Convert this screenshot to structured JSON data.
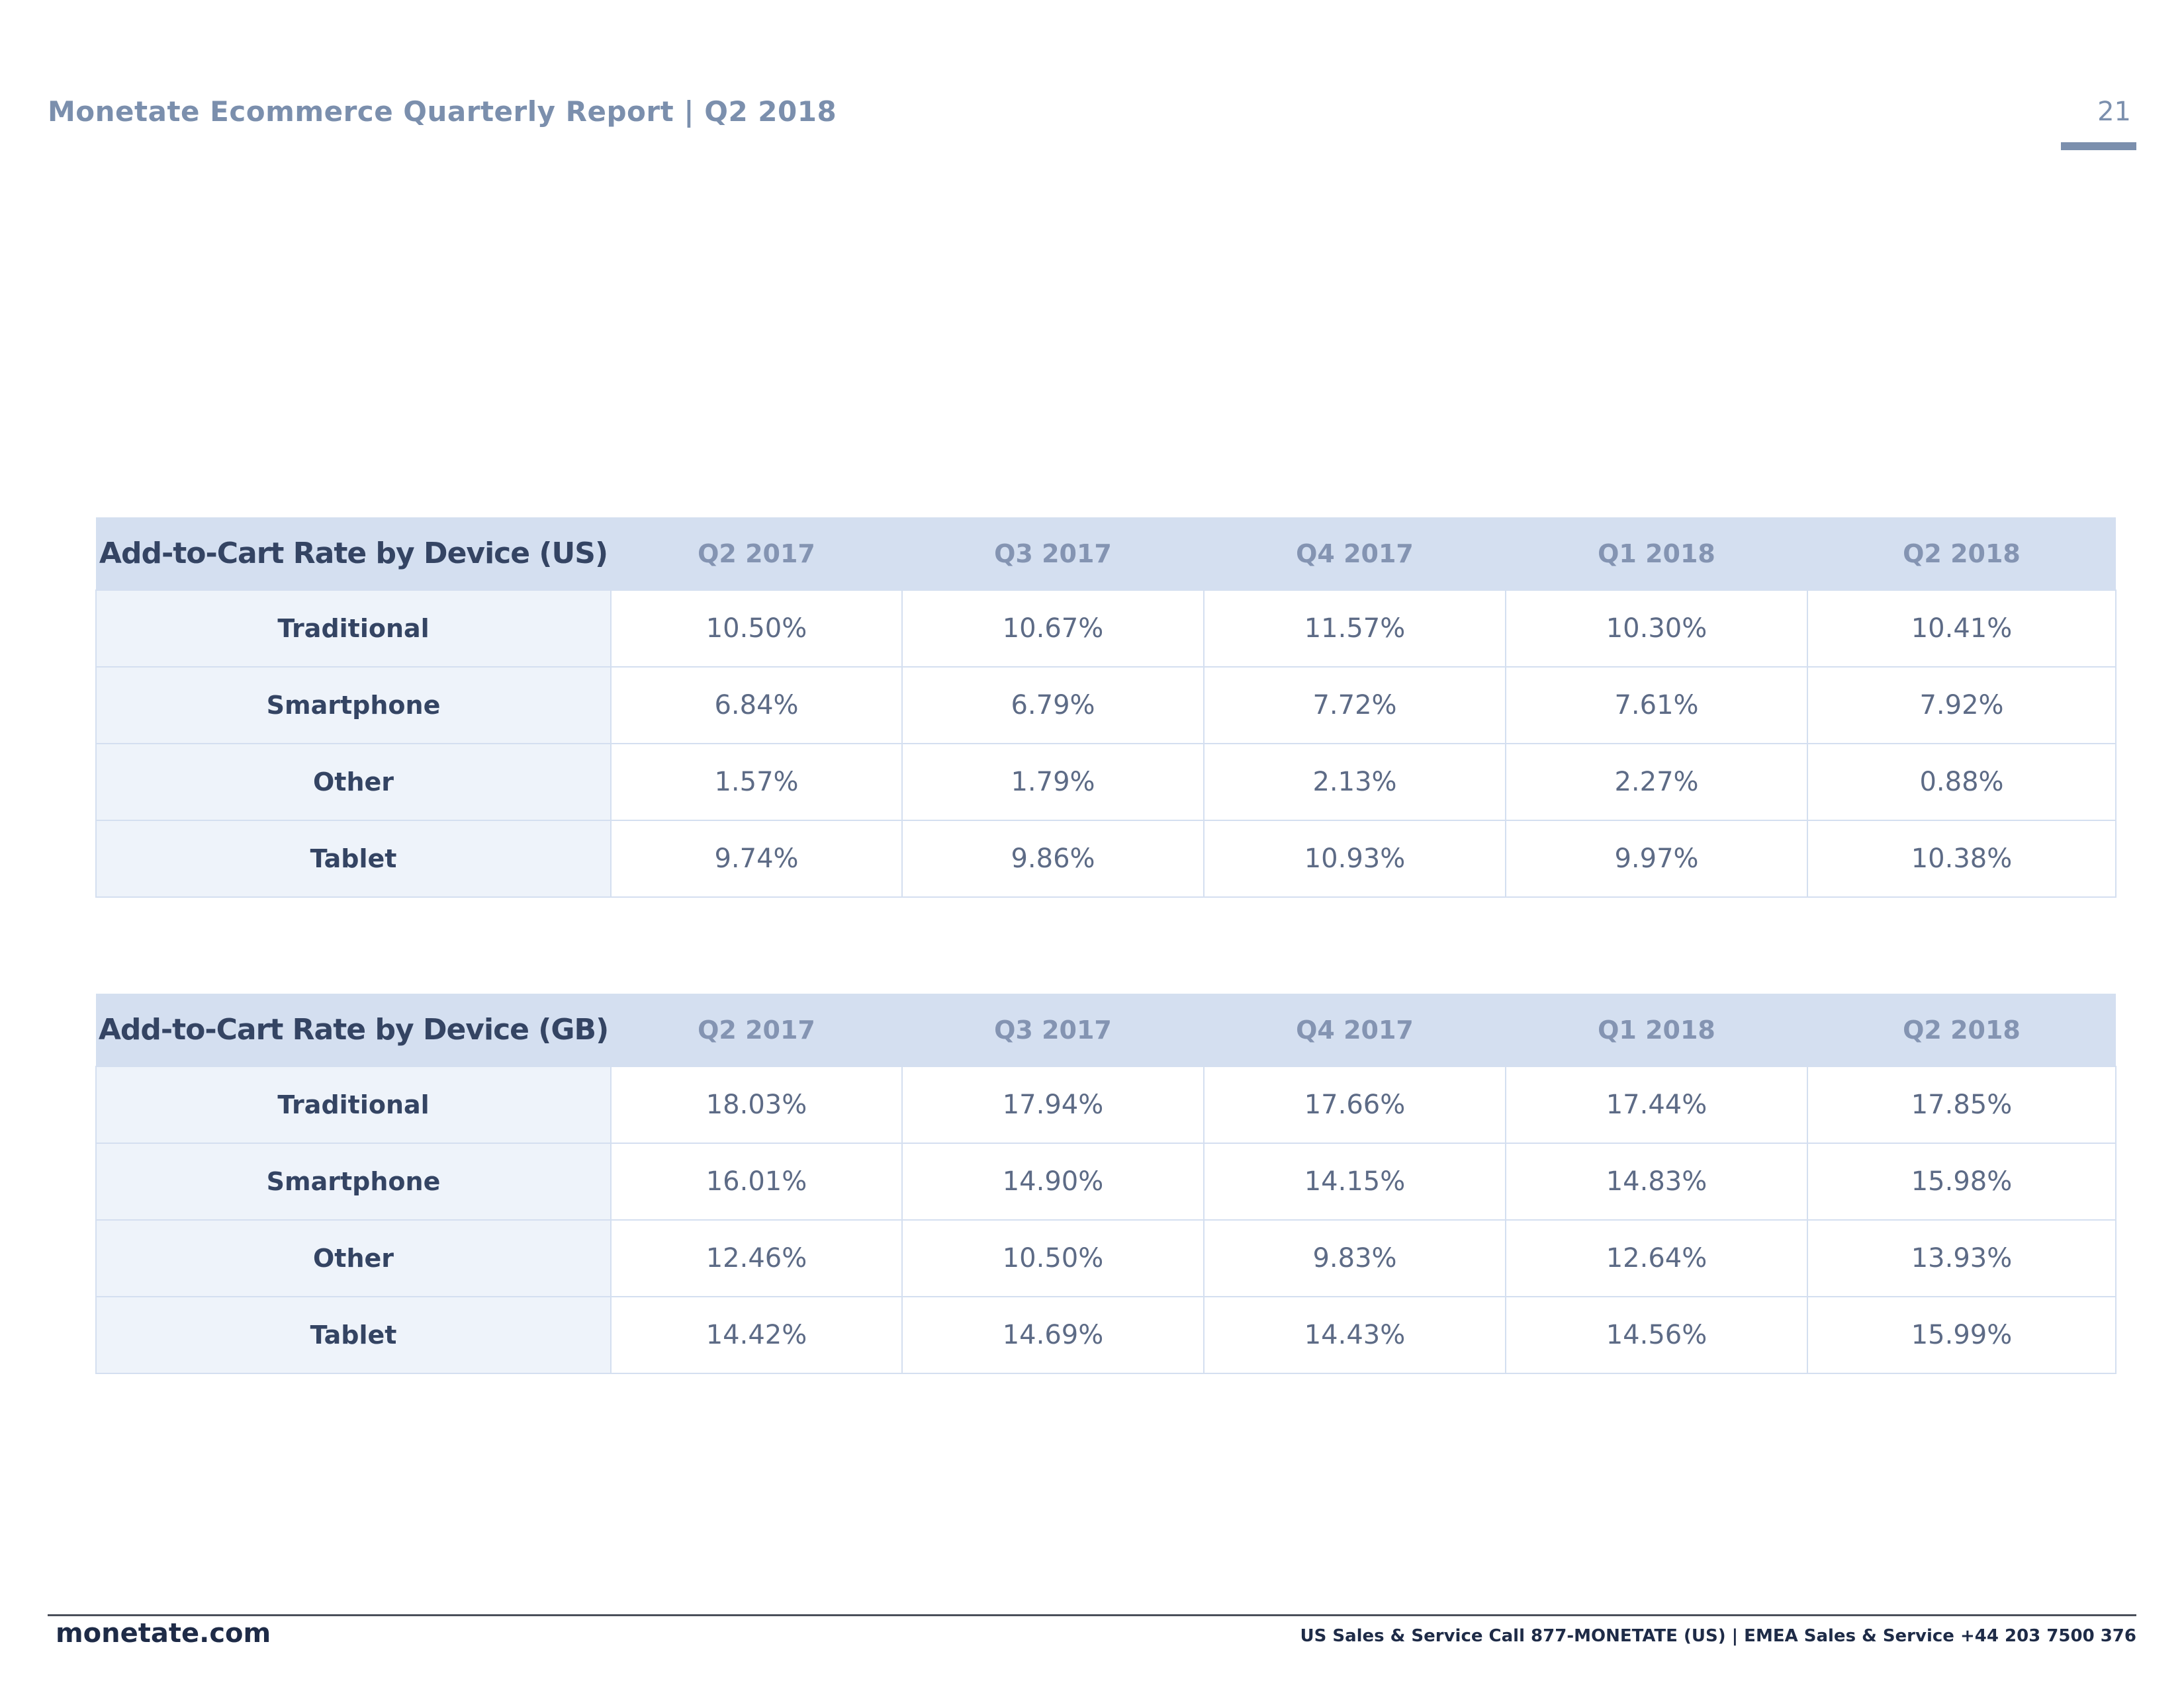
{
  "header": {
    "title": "Monetate Ecommerce Quarterly Report | Q2 2018",
    "page_number": "21"
  },
  "tables": [
    {
      "title": "Add-to-Cart Rate by Device (US)",
      "columns": [
        "Q2 2017",
        "Q3 2017",
        "Q4 2017",
        "Q1 2018",
        "Q2 2018"
      ],
      "rows": [
        {
          "label": "Traditional",
          "values": [
            "10.50%",
            "10.67%",
            "11.57%",
            "10.30%",
            "10.41%"
          ]
        },
        {
          "label": "Smartphone",
          "values": [
            "6.84%",
            "6.79%",
            "7.72%",
            "7.61%",
            "7.92%"
          ]
        },
        {
          "label": "Other",
          "values": [
            "1.57%",
            "1.79%",
            "2.13%",
            "2.27%",
            "0.88%"
          ]
        },
        {
          "label": "Tablet",
          "values": [
            "9.74%",
            "9.86%",
            "10.93%",
            "9.97%",
            "10.38%"
          ]
        }
      ]
    },
    {
      "title": "Add-to-Cart Rate by Device (GB)",
      "columns": [
        "Q2 2017",
        "Q3 2017",
        "Q4 2017",
        "Q1 2018",
        "Q2 2018"
      ],
      "rows": [
        {
          "label": "Traditional",
          "values": [
            "18.03%",
            "17.94%",
            "17.66%",
            "17.44%",
            "17.85%"
          ]
        },
        {
          "label": "Smartphone",
          "values": [
            "16.01%",
            "14.90%",
            "14.15%",
            "14.83%",
            "15.98%"
          ]
        },
        {
          "label": "Other",
          "values": [
            "12.46%",
            "10.50%",
            "9.83%",
            "12.64%",
            "13.93%"
          ]
        },
        {
          "label": "Tablet",
          "values": [
            "14.42%",
            "14.69%",
            "14.43%",
            "14.56%",
            "15.99%"
          ]
        }
      ]
    }
  ],
  "footer": {
    "brand": "monetate.com",
    "contact": "US Sales & Service Call 877-MONETATE (US) | EMEA Sales & Service +44 203 7500 376"
  }
}
